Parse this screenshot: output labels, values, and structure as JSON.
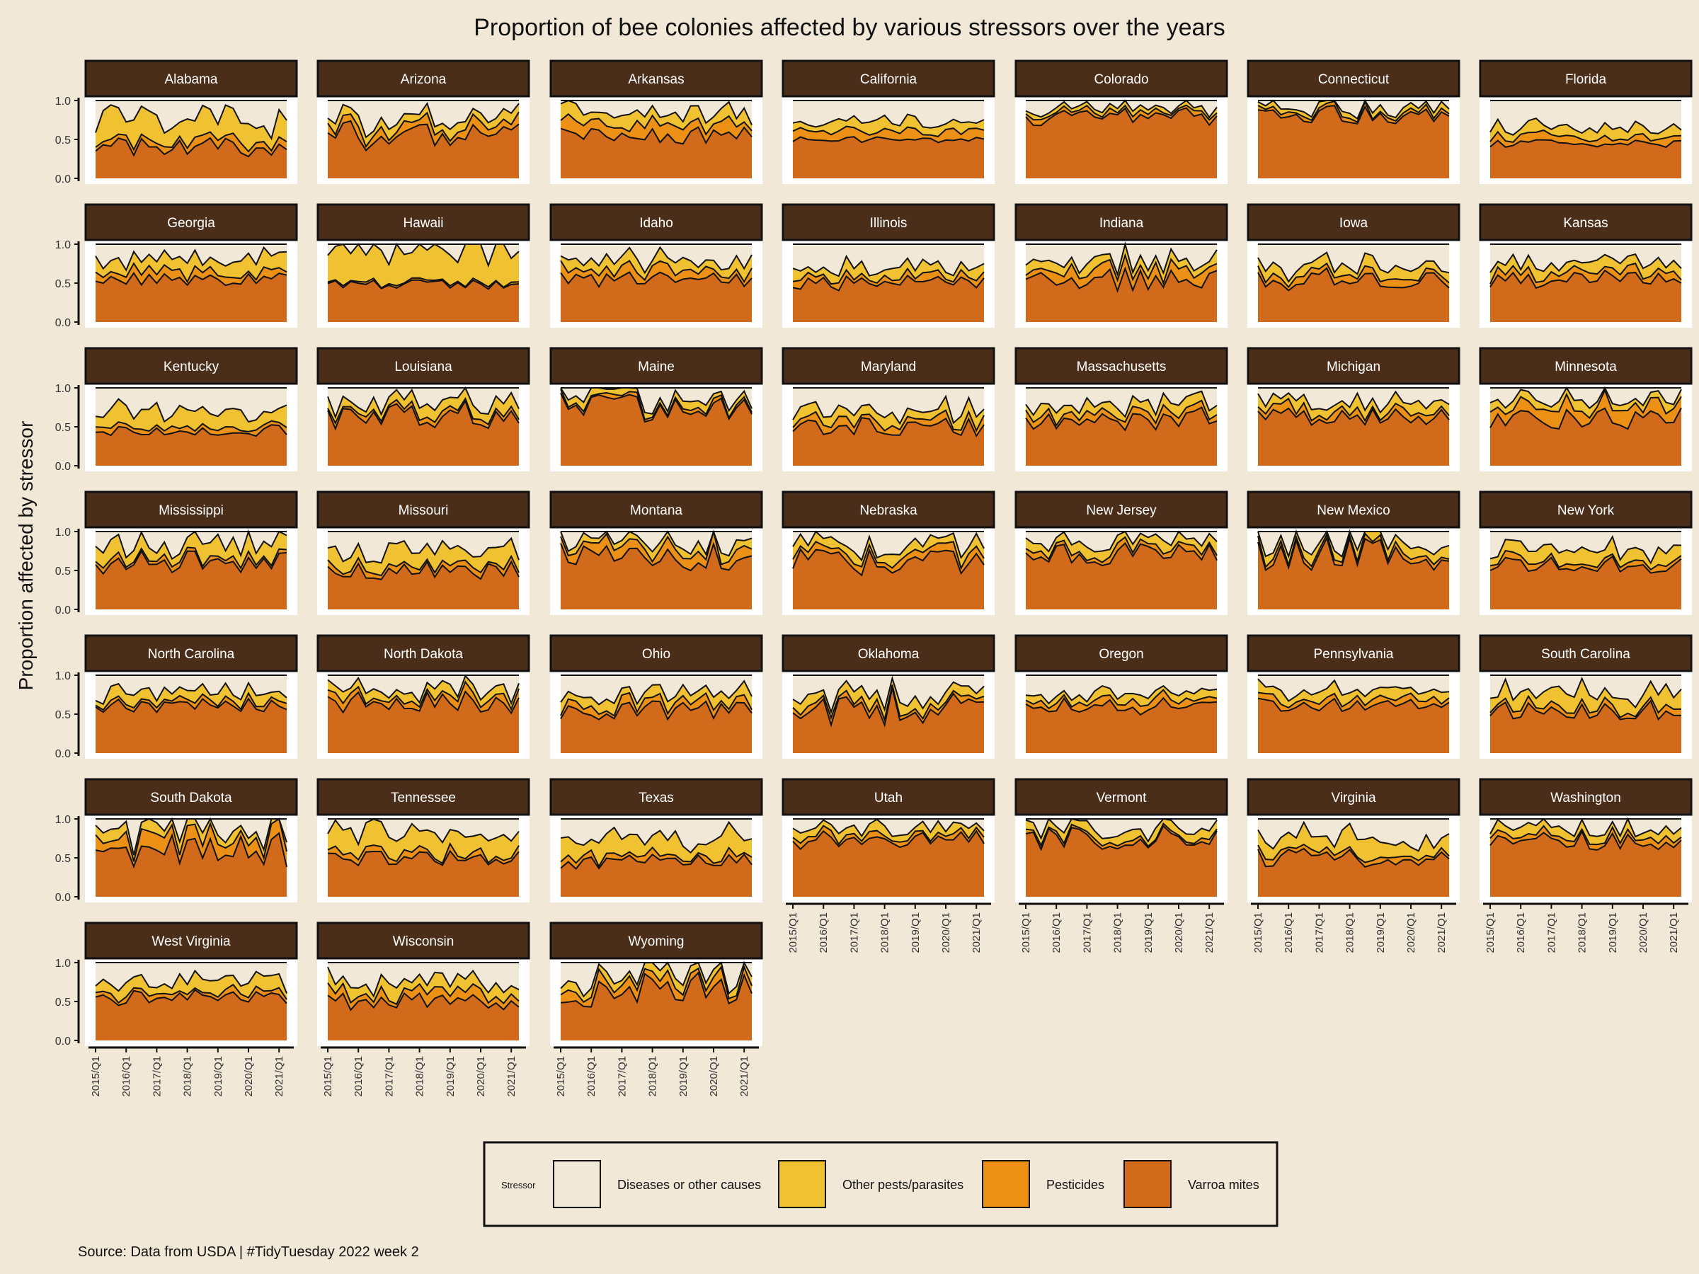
{
  "chart_data": {
    "type": "area",
    "title": "Proportion of bee colonies affected by various stressors over the years",
    "ylabel": "Proportion affected by stressor",
    "xlabel": "",
    "caption": "Source: Data from USDA | #TidyTuesday 2022 week 2",
    "ylim": [
      0,
      1
    ],
    "y_ticks": [
      "0.0",
      "0.5",
      "1.0"
    ],
    "x_ticks": [
      "2015/Q1",
      "2016/Q1",
      "2017/Q1",
      "2018/Q1",
      "2019/Q1",
      "2020/Q1",
      "2021/Q1"
    ],
    "legend": {
      "title": "Stressor",
      "position": "bottom",
      "items": [
        {
          "name": "Diseases or other causes",
          "color": "#f2e8d8"
        },
        {
          "name": "Other pests/parasites",
          "color": "#f0c232"
        },
        {
          "name": "Pesticides",
          "color": "#ec9116"
        },
        {
          "name": "Varroa mites",
          "color": "#d16a1b"
        }
      ]
    },
    "colors": {
      "strip": "#4a2e1a",
      "strip_text": "#ffffff",
      "background": "#f2e8d8",
      "panel": "#ffffff"
    },
    "panels": [
      {
        "state": "Alabama",
        "varroa": 0.4,
        "pesticides": 0.08,
        "pests": 0.3,
        "noise": 0.12
      },
      {
        "state": "Arizona",
        "varroa": 0.55,
        "pesticides": 0.1,
        "pests": 0.1,
        "noise": 0.2
      },
      {
        "state": "Arkansas",
        "varroa": 0.55,
        "pesticides": 0.15,
        "pests": 0.15,
        "noise": 0.12
      },
      {
        "state": "California",
        "varroa": 0.5,
        "pesticides": 0.1,
        "pests": 0.12,
        "noise": 0.04
      },
      {
        "state": "Colorado",
        "varroa": 0.8,
        "pesticides": 0.05,
        "pests": 0.05,
        "noise": 0.12
      },
      {
        "state": "Connecticut",
        "varroa": 0.82,
        "pesticides": 0.04,
        "pests": 0.06,
        "noise": 0.12
      },
      {
        "state": "Florida",
        "varroa": 0.45,
        "pesticides": 0.08,
        "pests": 0.12,
        "noise": 0.05
      },
      {
        "state": "Georgia",
        "varroa": 0.55,
        "pesticides": 0.08,
        "pests": 0.18,
        "noise": 0.08
      },
      {
        "state": "Hawaii",
        "varroa": 0.48,
        "pesticides": 0.02,
        "pests": 0.48,
        "noise": 0.06
      },
      {
        "state": "Idaho",
        "varroa": 0.55,
        "pesticides": 0.1,
        "pests": 0.12,
        "noise": 0.1
      },
      {
        "state": "Illinois",
        "varroa": 0.5,
        "pesticides": 0.08,
        "pests": 0.12,
        "noise": 0.1
      },
      {
        "state": "Indiana",
        "varroa": 0.55,
        "pesticides": 0.12,
        "pests": 0.12,
        "noise": 0.15
      },
      {
        "state": "Iowa",
        "varroa": 0.55,
        "pesticides": 0.08,
        "pests": 0.12,
        "noise": 0.15
      },
      {
        "state": "Kansas",
        "varroa": 0.55,
        "pesticides": 0.08,
        "pests": 0.12,
        "noise": 0.12
      },
      {
        "state": "Kentucky",
        "varroa": 0.45,
        "pesticides": 0.06,
        "pests": 0.2,
        "noise": 0.08
      },
      {
        "state": "Louisiana",
        "varroa": 0.65,
        "pesticides": 0.05,
        "pests": 0.12,
        "noise": 0.18
      },
      {
        "state": "Maine",
        "varroa": 0.75,
        "pesticides": 0.04,
        "pests": 0.08,
        "noise": 0.2
      },
      {
        "state": "Maryland",
        "varroa": 0.5,
        "pesticides": 0.08,
        "pests": 0.12,
        "noise": 0.12
      },
      {
        "state": "Massachusetts",
        "varroa": 0.6,
        "pesticides": 0.08,
        "pests": 0.12,
        "noise": 0.15
      },
      {
        "state": "Michigan",
        "varroa": 0.62,
        "pesticides": 0.08,
        "pests": 0.12,
        "noise": 0.12
      },
      {
        "state": "Minnesota",
        "varroa": 0.6,
        "pesticides": 0.15,
        "pests": 0.1,
        "noise": 0.15
      },
      {
        "state": "Mississippi",
        "varroa": 0.6,
        "pesticides": 0.05,
        "pests": 0.2,
        "noise": 0.15
      },
      {
        "state": "Missouri",
        "varroa": 0.5,
        "pesticides": 0.06,
        "pests": 0.2,
        "noise": 0.12
      },
      {
        "state": "Montana",
        "varroa": 0.65,
        "pesticides": 0.1,
        "pests": 0.1,
        "noise": 0.2
      },
      {
        "state": "Nebraska",
        "varroa": 0.6,
        "pesticides": 0.08,
        "pests": 0.12,
        "noise": 0.18
      },
      {
        "state": "New Jersey",
        "varroa": 0.7,
        "pesticides": 0.06,
        "pests": 0.12,
        "noise": 0.15
      },
      {
        "state": "New Mexico",
        "varroa": 0.7,
        "pesticides": 0.05,
        "pests": 0.12,
        "noise": 0.22
      },
      {
        "state": "New York",
        "varroa": 0.58,
        "pesticides": 0.06,
        "pests": 0.15,
        "noise": 0.12
      },
      {
        "state": "North Carolina",
        "varroa": 0.6,
        "pesticides": 0.05,
        "pests": 0.12,
        "noise": 0.1
      },
      {
        "state": "North Dakota",
        "varroa": 0.65,
        "pesticides": 0.08,
        "pests": 0.1,
        "noise": 0.15
      },
      {
        "state": "Ohio",
        "varroa": 0.55,
        "pesticides": 0.08,
        "pests": 0.12,
        "noise": 0.12
      },
      {
        "state": "Oklahoma",
        "varroa": 0.6,
        "pesticides": 0.06,
        "pests": 0.12,
        "noise": 0.25
      },
      {
        "state": "Oregon",
        "varroa": 0.6,
        "pesticides": 0.08,
        "pests": 0.1,
        "noise": 0.12
      },
      {
        "state": "Pennsylvania",
        "varroa": 0.62,
        "pesticides": 0.06,
        "pests": 0.12,
        "noise": 0.1
      },
      {
        "state": "South Carolina",
        "varroa": 0.55,
        "pesticides": 0.06,
        "pests": 0.18,
        "noise": 0.12
      },
      {
        "state": "South Dakota",
        "varroa": 0.6,
        "pesticides": 0.15,
        "pests": 0.12,
        "noise": 0.22
      },
      {
        "state": "Tennessee",
        "varroa": 0.5,
        "pesticides": 0.06,
        "pests": 0.25,
        "noise": 0.1
      },
      {
        "state": "Texas",
        "varroa": 0.45,
        "pesticides": 0.06,
        "pests": 0.22,
        "noise": 0.1
      },
      {
        "state": "Utah",
        "varroa": 0.75,
        "pesticides": 0.06,
        "pests": 0.1,
        "noise": 0.15
      },
      {
        "state": "Vermont",
        "varroa": 0.75,
        "pesticides": 0.04,
        "pests": 0.1,
        "noise": 0.18
      },
      {
        "state": "Virginia",
        "varroa": 0.5,
        "pesticides": 0.06,
        "pests": 0.2,
        "noise": 0.12
      },
      {
        "state": "Washington",
        "varroa": 0.72,
        "pesticides": 0.06,
        "pests": 0.1,
        "noise": 0.12
      },
      {
        "state": "West Virginia",
        "varroa": 0.55,
        "pesticides": 0.06,
        "pests": 0.15,
        "noise": 0.1
      },
      {
        "state": "Wisconsin",
        "varroa": 0.5,
        "pesticides": 0.1,
        "pests": 0.15,
        "noise": 0.12
      },
      {
        "state": "Wyoming",
        "varroa": 0.65,
        "pesticides": 0.1,
        "pests": 0.1,
        "noise": 0.22
      }
    ]
  }
}
